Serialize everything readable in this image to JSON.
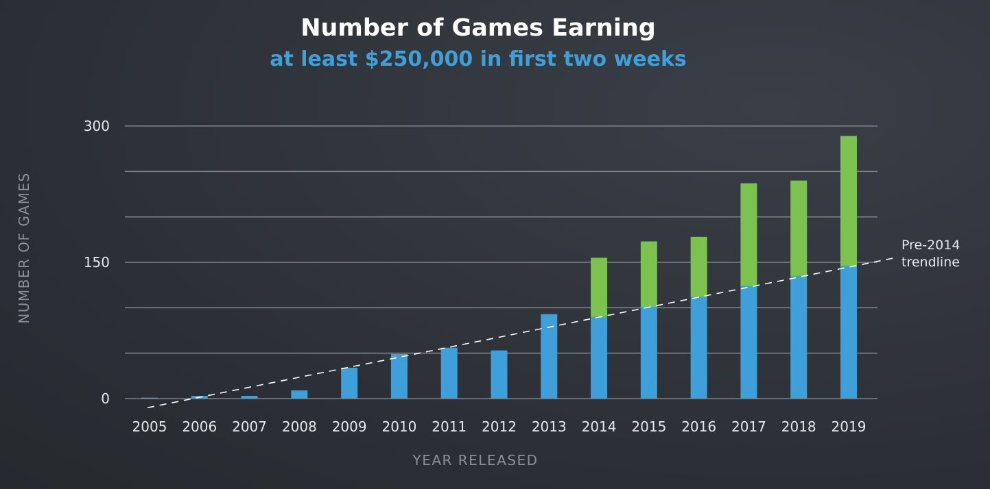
{
  "chart_data": {
    "type": "bar",
    "title": "Number of Games Earning",
    "subtitle": "at least $250,000 in first two weeks",
    "xlabel": "YEAR RELEASED",
    "ylabel": "NUMBER OF GAMES",
    "categories": [
      "2005",
      "2006",
      "2007",
      "2008",
      "2009",
      "2010",
      "2011",
      "2012",
      "2013",
      "2014",
      "2015",
      "2016",
      "2017",
      "2018",
      "2019"
    ],
    "series": [
      {
        "values": [
          1,
          3,
          3,
          9,
          34,
          49,
          56,
          53,
          93,
          90,
          101,
          112,
          124,
          135,
          146
        ]
      },
      {
        "values": [
          0,
          0,
          0,
          0,
          0,
          0,
          0,
          0,
          0,
          65,
          72,
          66,
          113,
          105,
          143
        ]
      }
    ],
    "series_colors": [
      "#3fa0d9",
      "#7bc24f"
    ],
    "stacked": true,
    "ylim": [
      0,
      300
    ],
    "yticks": [
      0,
      150,
      300
    ],
    "grid": true,
    "trendline": {
      "label_line1": "Pre-2014",
      "label_line2": "trendline",
      "y_start": -10,
      "y_end": 155
    }
  }
}
